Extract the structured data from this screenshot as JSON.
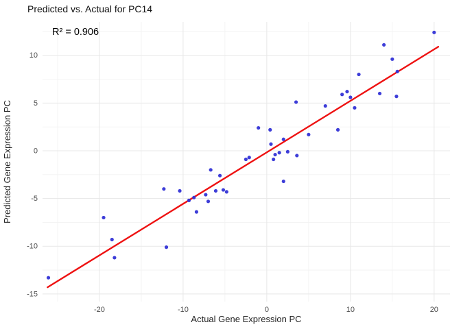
{
  "chart_data": {
    "type": "scatter",
    "title": "Predicted vs. Actual for PC14",
    "annotation": "R² = 0.906",
    "xlabel": "Actual Gene Expression PC",
    "ylabel": "Predicted Gene Expression PC",
    "xlim": [
      -26.8,
      21.9
    ],
    "ylim": [
      -15.8,
      13.5
    ],
    "xticks": [
      -20,
      -10,
      0,
      10,
      20
    ],
    "yticks": [
      -15,
      -10,
      -5,
      0,
      5,
      10
    ],
    "xticks_minor": [
      -25,
      -15,
      -5,
      5,
      15
    ],
    "yticks_minor": [
      -12.5,
      -7.5,
      -2.5,
      2.5,
      7.5,
      12.5
    ],
    "grid": true,
    "legend": "none",
    "point_color": "#3333d6",
    "line_color": "#ee1111",
    "points": [
      [
        -26.1,
        -13.3
      ],
      [
        -19.5,
        -7.0
      ],
      [
        -18.5,
        -9.3
      ],
      [
        -18.2,
        -11.2
      ],
      [
        -12.3,
        -4.0
      ],
      [
        -12.0,
        -10.1
      ],
      [
        -10.4,
        -4.2
      ],
      [
        -9.3,
        -5.2
      ],
      [
        -8.7,
        -4.9
      ],
      [
        -8.4,
        -6.4
      ],
      [
        -7.3,
        -4.6
      ],
      [
        -7.0,
        -5.3
      ],
      [
        -6.7,
        -2.0
      ],
      [
        -6.1,
        -4.2
      ],
      [
        -5.6,
        -2.6
      ],
      [
        -5.2,
        -4.1
      ],
      [
        -4.8,
        -4.3
      ],
      [
        -2.5,
        -0.9
      ],
      [
        -2.1,
        -0.7
      ],
      [
        -1.0,
        2.4
      ],
      [
        0.4,
        2.2
      ],
      [
        0.5,
        0.7
      ],
      [
        0.8,
        -0.9
      ],
      [
        1.0,
        -0.4
      ],
      [
        1.5,
        -0.2
      ],
      [
        2.0,
        1.2
      ],
      [
        2.0,
        -3.2
      ],
      [
        2.5,
        -0.1
      ],
      [
        3.5,
        5.1
      ],
      [
        3.6,
        -0.5
      ],
      [
        5.0,
        1.7
      ],
      [
        7.0,
        4.7
      ],
      [
        8.5,
        2.2
      ],
      [
        9.0,
        5.9
      ],
      [
        9.6,
        6.2
      ],
      [
        10.0,
        5.6
      ],
      [
        10.5,
        4.5
      ],
      [
        11.0,
        8.0
      ],
      [
        13.5,
        6.0
      ],
      [
        14.0,
        11.1
      ],
      [
        15.0,
        9.6
      ],
      [
        15.5,
        5.7
      ],
      [
        15.6,
        8.3
      ],
      [
        20.0,
        12.4
      ]
    ],
    "regression_line": {
      "x1": -26.2,
      "y1": -14.3,
      "x2": 20.5,
      "y2": 10.9
    }
  }
}
